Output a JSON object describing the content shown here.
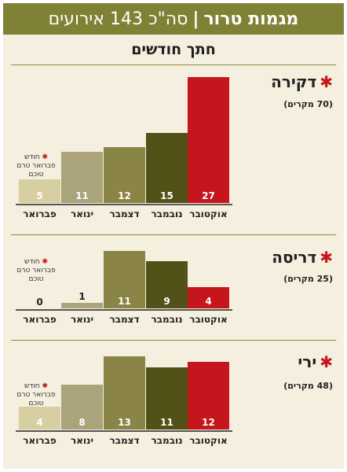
{
  "header": {
    "title_bold": "מגמות טרור",
    "separator": "|",
    "title_rest": "סה\"כ 143 אירועים"
  },
  "subtitle": "חתך חודשים",
  "note": {
    "star": "✱",
    "text": "חודש פברואר טרם טוכם"
  },
  "colors": {
    "october": "#c4161c",
    "november": "#525118",
    "december": "#8a8447",
    "january": "#aba37a",
    "february": "#d7cea2",
    "header": "#7f8135"
  },
  "chart_data": [
    {
      "type": "bar",
      "title": "דקירה",
      "count_label": "(70 מקרים)",
      "categories": [
        "אוקטובר",
        "נובמבר",
        "דצמבר",
        "ינואר",
        "פברואר"
      ],
      "values": [
        27,
        15,
        12,
        11,
        5
      ],
      "ylim": [
        0,
        27
      ]
    },
    {
      "type": "bar",
      "title": "דריסה",
      "count_label": "(25 מקרים)",
      "categories": [
        "אוקטובר",
        "נובמבר",
        "דצמבר",
        "ינואר",
        "פברואר"
      ],
      "values": [
        4,
        9,
        11,
        1,
        0
      ],
      "ylim": [
        0,
        11
      ]
    },
    {
      "type": "bar",
      "title": "ירי",
      "count_label": "(48 מקרים)",
      "categories": [
        "אוקטובר",
        "נובמבר",
        "דצמבר",
        "ינואר",
        "פברואר"
      ],
      "values": [
        12,
        11,
        13,
        8,
        4
      ],
      "ylim": [
        0,
        13
      ]
    }
  ]
}
